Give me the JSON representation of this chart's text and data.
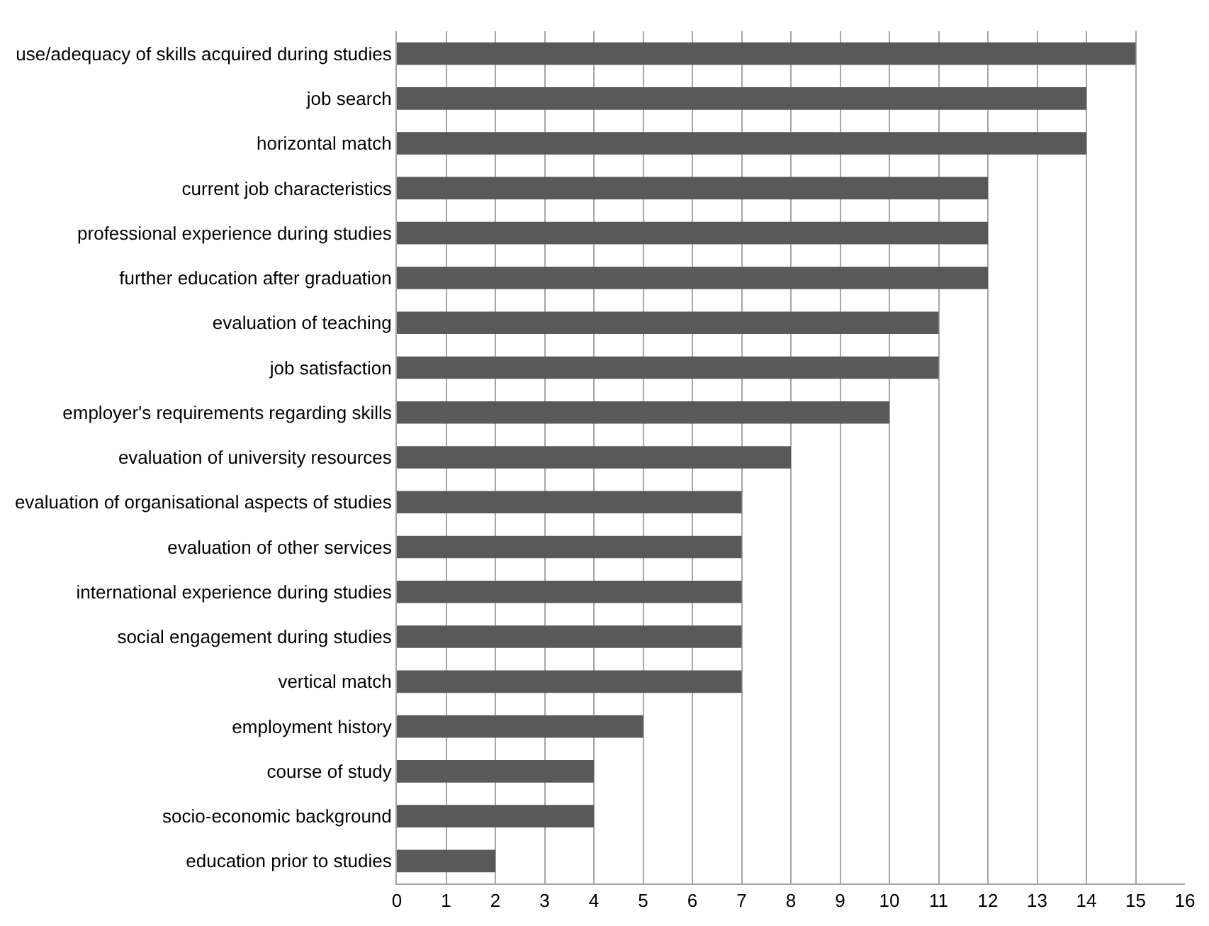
{
  "chart_data": {
    "type": "bar",
    "orientation": "horizontal",
    "categories": [
      "use/adequacy of skills acquired during studies",
      "job search",
      "horizontal match",
      "current job characteristics",
      "professional experience during studies",
      "further education after graduation",
      "evaluation of teaching",
      "job satisfaction",
      "employer's requirements regarding skills",
      "evaluation of university resources",
      "evaluation of organisational aspects of studies",
      "evaluation of other services",
      "international experience during studies",
      "social engagement during studies",
      "vertical match",
      "employment history",
      "course of study",
      "socio-economic background",
      "education prior to studies"
    ],
    "values": [
      15,
      14,
      14,
      12,
      12,
      12,
      11,
      11,
      10,
      8,
      7,
      7,
      7,
      7,
      7,
      5,
      4,
      4,
      2
    ],
    "color": "#595959",
    "xlim": [
      0,
      16
    ],
    "xticks": [
      0,
      1,
      2,
      3,
      4,
      5,
      6,
      7,
      8,
      9,
      10,
      11,
      12,
      13,
      14,
      15,
      16
    ],
    "grid": "x"
  }
}
